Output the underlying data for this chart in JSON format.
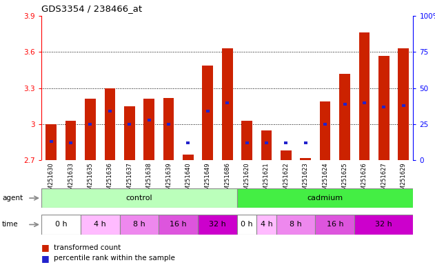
{
  "title": "GDS3354 / 238466_at",
  "samples": [
    "GSM251630",
    "GSM251633",
    "GSM251635",
    "GSM251636",
    "GSM251637",
    "GSM251638",
    "GSM251639",
    "GSM251640",
    "GSM251649",
    "GSM251686",
    "GSM251620",
    "GSM251621",
    "GSM251622",
    "GSM251623",
    "GSM251624",
    "GSM251625",
    "GSM251626",
    "GSM251627",
    "GSM251629"
  ],
  "transformed_count": [
    3.0,
    3.03,
    3.21,
    3.3,
    3.15,
    3.21,
    3.22,
    2.75,
    3.49,
    3.63,
    3.03,
    2.95,
    2.78,
    2.72,
    3.19,
    3.42,
    3.76,
    3.57,
    3.63
  ],
  "percentile_rank": [
    13,
    12,
    25,
    34,
    25,
    28,
    25,
    12,
    34,
    40,
    12,
    12,
    12,
    12,
    25,
    39,
    40,
    37,
    38
  ],
  "bar_bottom": 2.7,
  "ylim_left": [
    2.7,
    3.9
  ],
  "ylim_right": [
    0,
    100
  ],
  "yticks_left": [
    2.7,
    3.0,
    3.3,
    3.6,
    3.9
  ],
  "yticks_right": [
    0,
    25,
    50,
    75,
    100
  ],
  "ytick_labels_left": [
    "2.7",
    "3",
    "3.3",
    "3.6",
    "3.9"
  ],
  "ytick_labels_right": [
    "0",
    "25",
    "50",
    "75",
    "100%"
  ],
  "hlines": [
    3.0,
    3.3,
    3.6
  ],
  "bar_color": "#cc2200",
  "percentile_color": "#2222cc",
  "agent_groups": [
    {
      "label": "control",
      "start": 0,
      "end": 10,
      "color": "#bbffbb"
    },
    {
      "label": "cadmium",
      "start": 10,
      "end": 19,
      "color": "#44ee44"
    }
  ],
  "time_data": [
    {
      "label": "0 h",
      "start": 0,
      "end": 2,
      "color": "#ffffff"
    },
    {
      "label": "4 h",
      "start": 2,
      "end": 4,
      "color": "#ffbbff"
    },
    {
      "label": "8 h",
      "start": 4,
      "end": 6,
      "color": "#ee88ee"
    },
    {
      "label": "16 h",
      "start": 6,
      "end": 8,
      "color": "#dd55dd"
    },
    {
      "label": "32 h",
      "start": 8,
      "end": 10,
      "color": "#cc00cc"
    },
    {
      "label": "0 h",
      "start": 10,
      "end": 11,
      "color": "#ffffff"
    },
    {
      "label": "4 h",
      "start": 11,
      "end": 12,
      "color": "#ffbbff"
    },
    {
      "label": "8 h",
      "start": 12,
      "end": 14,
      "color": "#ee88ee"
    },
    {
      "label": "16 h",
      "start": 14,
      "end": 16,
      "color": "#dd55dd"
    },
    {
      "label": "32 h",
      "start": 16,
      "end": 19,
      "color": "#cc00cc"
    }
  ],
  "bar_width": 0.55,
  "perc_sq_size": 0.022,
  "xlabel_bg_color": "#dddddd"
}
